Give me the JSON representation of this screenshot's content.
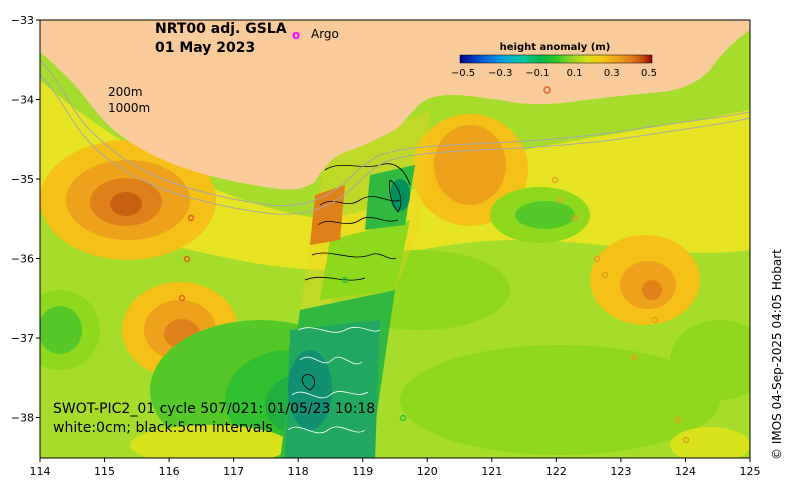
{
  "title": {
    "line1": "NRT00 adj. GSLA",
    "line2": "01 May 2023"
  },
  "legend": {
    "argo_symbol": "o",
    "argo_label": "Argo",
    "argo_color": "#ff00ff"
  },
  "depth_labels": [
    "200m",
    "1000m"
  ],
  "colorbar": {
    "title": "height anomaly (m)",
    "ticks": [
      "−0.5",
      "−0.3",
      "−0.1",
      "0.1",
      "0.3",
      "0.5"
    ],
    "colors": [
      "#00008b",
      "#0050d0",
      "#00a0e0",
      "#00c8a0",
      "#00b84a",
      "#30c828",
      "#8ed81e",
      "#d8e21a",
      "#f4c814",
      "#eea11c",
      "#e07818",
      "#c04010",
      "#8b0000"
    ]
  },
  "x_axis": {
    "ticks": [
      "114",
      "115",
      "116",
      "117",
      "118",
      "119",
      "120",
      "121",
      "122",
      "123",
      "124",
      "125"
    ]
  },
  "y_axis": {
    "ticks": [
      "−33",
      "−34",
      "−35",
      "−36",
      "−37",
      "−38"
    ]
  },
  "swot": {
    "line1": "SWOT-PIC2_01 cycle 507/021: 01/05/23 10:18",
    "line2": "white:0cm; black:5cm intervals"
  },
  "credit": "© IMOS 04-Sep-2025 04:05 Hobart",
  "colors": {
    "land": "#facb9a",
    "ocean_base": "#a6dc2c"
  }
}
